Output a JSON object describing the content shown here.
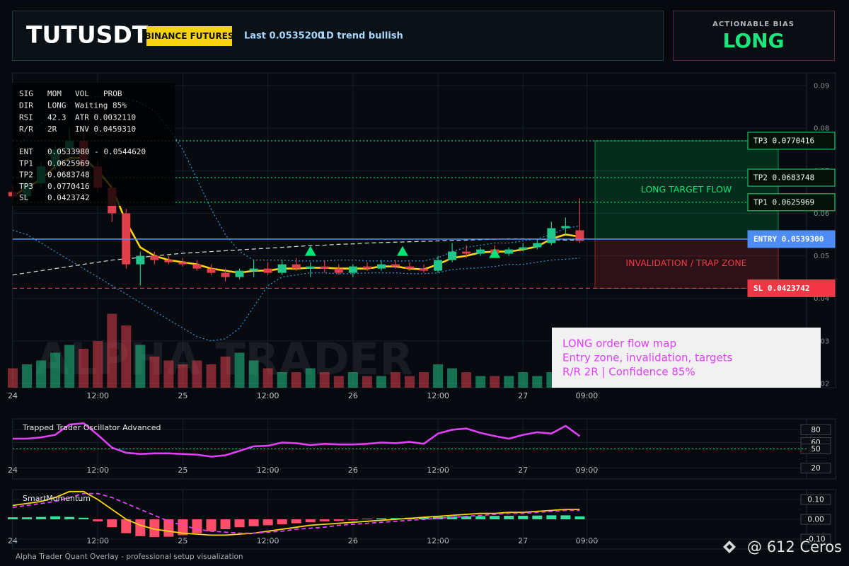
{
  "header": {
    "symbol": "TUTUSDT",
    "exchange": "BINANCE FUTURES",
    "last": "Last 0.0535200",
    "trend": "1D trend bullish"
  },
  "bias": {
    "label": "ACTIONABLE BIAS",
    "value": "LONG"
  },
  "info_panel": {
    "rows": [
      [
        "SIG",
        "MOM",
        "VOL",
        "PROB"
      ],
      [
        "DIR",
        "LONG",
        "Waiting 85%"
      ],
      [
        "RSI",
        "42.3",
        "ATR 0.0032110"
      ],
      [
        "R/R",
        "2R",
        "INV 0.0459310"
      ],
      [
        "ENT",
        "0.0533980 - 0.0544620"
      ],
      [
        "TP1",
        "0.0625969"
      ],
      [
        "TP2",
        "0.0683748"
      ],
      [
        "TP3",
        "0.0770416"
      ],
      [
        "SL",
        "0.0423742"
      ]
    ]
  },
  "note": {
    "lines": [
      "LONG order flow map",
      "Entry zone, invalidation, targets",
      "R/R 2R | Confidence 85%"
    ]
  },
  "background_text": "ALPHA TRADER",
  "footer": "Alpha Trader Quant Overlay - professional setup visualization",
  "watermark": "@ 612 Ceros",
  "chart_data": [
    {
      "type": "candlestick",
      "x": [
        0,
        2,
        4,
        6,
        8,
        10,
        12,
        14,
        16,
        18,
        20,
        22,
        24,
        26,
        28,
        30,
        32,
        34,
        36,
        38,
        40,
        42,
        44,
        46,
        48,
        50,
        52,
        54,
        56,
        58,
        60,
        62,
        64,
        66,
        68,
        70,
        72,
        74,
        76,
        78,
        80
      ],
      "open": [
        0.065,
        0.064,
        0.067,
        0.071,
        0.075,
        0.077,
        0.071,
        0.066,
        0.06,
        0.048,
        0.05,
        0.049,
        0.0485,
        0.048,
        0.047,
        0.046,
        0.045,
        0.0465,
        0.047,
        0.046,
        0.048,
        0.047,
        0.0475,
        0.047,
        0.046,
        0.0475,
        0.047,
        0.048,
        0.0475,
        0.047,
        0.0465,
        0.049,
        0.051,
        0.0505,
        0.0515,
        0.0505,
        0.0515,
        0.052,
        0.053,
        0.0565,
        0.056
      ],
      "high": [
        0.0665,
        0.068,
        0.072,
        0.076,
        0.08,
        0.079,
        0.072,
        0.067,
        0.061,
        0.051,
        0.051,
        0.05,
        0.0495,
        0.049,
        0.048,
        0.047,
        0.047,
        0.049,
        0.0485,
        0.049,
        0.0495,
        0.0485,
        0.049,
        0.048,
        0.048,
        0.0485,
        0.049,
        0.049,
        0.0485,
        0.048,
        0.05,
        0.053,
        0.0525,
        0.052,
        0.0525,
        0.052,
        0.053,
        0.054,
        0.058,
        0.059,
        0.0635
      ],
      "low": [
        0.063,
        0.0625,
        0.066,
        0.07,
        0.073,
        0.07,
        0.065,
        0.058,
        0.047,
        0.043,
        0.048,
        0.048,
        0.0475,
        0.0465,
        0.0455,
        0.044,
        0.0445,
        0.045,
        0.0455,
        0.0455,
        0.0465,
        0.045,
        0.046,
        0.0455,
        0.045,
        0.0465,
        0.0465,
        0.047,
        0.0465,
        0.046,
        0.046,
        0.0485,
        0.0495,
        0.05,
        0.05,
        0.05,
        0.051,
        0.0515,
        0.0525,
        0.055,
        0.053
      ],
      "close": [
        0.064,
        0.067,
        0.071,
        0.075,
        0.077,
        0.071,
        0.066,
        0.06,
        0.048,
        0.05,
        0.049,
        0.0485,
        0.048,
        0.047,
        0.046,
        0.045,
        0.0465,
        0.047,
        0.046,
        0.048,
        0.047,
        0.0475,
        0.047,
        0.046,
        0.0475,
        0.047,
        0.048,
        0.0475,
        0.047,
        0.0465,
        0.049,
        0.051,
        0.0505,
        0.0515,
        0.0505,
        0.0515,
        0.052,
        0.053,
        0.0565,
        0.057,
        0.0535
      ],
      "up_color": "#22c58b",
      "down_color": "#e0404d",
      "volume": [
        25,
        30,
        35,
        45,
        55,
        50,
        60,
        95,
        80,
        55,
        40,
        35,
        30,
        35,
        30,
        40,
        45,
        35,
        25,
        20,
        20,
        25,
        20,
        15,
        20,
        15,
        15,
        20,
        15,
        20,
        30,
        25,
        20,
        15,
        15,
        15,
        20,
        15,
        20,
        15,
        15
      ],
      "volume_lim": [
        0,
        100
      ],
      "overlays": [
        {
          "color": "#2b8fd0",
          "style": "dotted",
          "values": [
            0.075,
            0.078,
            0.081,
            0.084,
            0.086,
            0.087,
            0.0875,
            0.0875,
            0.087,
            0.086,
            0.084,
            0.08,
            0.075,
            0.068,
            0.061,
            0.055,
            0.051,
            0.049,
            0.049,
            0.049,
            0.0488,
            0.0488,
            0.0488,
            0.049,
            0.049,
            0.0488,
            0.0488,
            0.0488,
            0.0488,
            0.0488,
            0.0495,
            0.051,
            0.052,
            0.0525,
            0.053,
            0.053,
            0.0535,
            0.054,
            0.055,
            0.0565,
            0.057
          ]
        },
        {
          "color": "#2b8fd0",
          "style": "dotted",
          "values": [
            0.056,
            0.055,
            0.053,
            0.051,
            0.049,
            0.047,
            0.045,
            0.043,
            0.041,
            0.039,
            0.037,
            0.035,
            0.033,
            0.031,
            0.03,
            0.0305,
            0.033,
            0.038,
            0.043,
            0.045,
            0.0455,
            0.046,
            0.046,
            0.0458,
            0.0458,
            0.046,
            0.046,
            0.046,
            0.0458,
            0.0458,
            0.046,
            0.0468,
            0.047,
            0.0472,
            0.0475,
            0.048,
            0.048,
            0.0485,
            0.049,
            0.0492,
            0.0495
          ]
        },
        {
          "color": "#cfcfcf",
          "style": "dashed",
          "values": [
            0.0455,
            0.046,
            0.0465,
            0.047,
            0.0475,
            0.048,
            0.0485,
            0.049,
            0.0493,
            0.0496,
            0.05,
            0.0503,
            0.0506,
            0.0508,
            0.051,
            0.0512,
            0.0514,
            0.0516,
            0.0518,
            0.052,
            0.0522,
            0.0524,
            0.0525,
            0.0527,
            0.0528,
            0.053,
            0.0531,
            0.0532,
            0.0533,
            0.0534,
            0.0535,
            0.0536,
            0.0537,
            0.0538,
            0.0539,
            0.054,
            0.054,
            0.0539,
            0.0538,
            0.0537,
            0.0537
          ]
        },
        {
          "color": "#ffd60a",
          "style": "solid",
          "values": [
            0.064,
            0.066,
            0.068,
            0.071,
            0.073,
            0.073,
            0.07,
            0.066,
            0.058,
            0.052,
            0.05,
            0.049,
            0.0485,
            0.048,
            0.047,
            0.0465,
            0.046,
            0.0465,
            0.0465,
            0.047,
            0.047,
            0.0472,
            0.0472,
            0.047,
            0.047,
            0.047,
            0.0475,
            0.0475,
            0.047,
            0.0468,
            0.048,
            0.0495,
            0.05,
            0.0508,
            0.051,
            0.051,
            0.0515,
            0.0522,
            0.054,
            0.055,
            0.0545
          ]
        }
      ],
      "levels": [
        {
          "label": "TP3 0.0770416",
          "value": 0.0770416,
          "color": "#00e676",
          "line": "dotted",
          "box": "outline"
        },
        {
          "label": "TP2 0.0683748",
          "value": 0.0683748,
          "color": "#00e676",
          "line": "dotted",
          "box": "outline"
        },
        {
          "label": "TP1 0.0625969",
          "value": 0.0625969,
          "color": "#00e676",
          "line": "dotted",
          "box": "outline"
        },
        {
          "label": "ENTRY 0.0539300",
          "value": 0.05393,
          "color": "#4d8cf5",
          "line": "solid",
          "box": "filled"
        },
        {
          "label": "SL 0.0423742",
          "value": 0.0423742,
          "color": "#f23645",
          "line": "dashed",
          "box": "filled"
        }
      ],
      "zones": [
        {
          "label": "LONG TARGET FLOW",
          "from": 0.05393,
          "to": 0.0770416,
          "color": "#00e676"
        },
        {
          "label": "INVALIDATION / TRAP ZONE",
          "from": 0.0423742,
          "to": 0.05393,
          "color": "#f23645"
        }
      ],
      "signals": {
        "x": [
          42,
          55,
          68
        ],
        "values": [
          0.051,
          0.051,
          0.0505
        ],
        "color": "#00e676"
      },
      "xlim": [
        0,
        112
      ],
      "ylim": [
        0.019,
        0.093
      ],
      "yticks": [
        0.09,
        0.08,
        0.07,
        0.06,
        0.05,
        0.04,
        0.03,
        0.02
      ],
      "xticks": [
        {
          "value": 0,
          "label": "24"
        },
        {
          "value": 12,
          "label": "12:00"
        },
        {
          "value": 24,
          "label": "25"
        },
        {
          "value": 36,
          "label": "12:00"
        },
        {
          "value": 48,
          "label": "26"
        },
        {
          "value": 60,
          "label": "12:00"
        },
        {
          "value": 72,
          "label": "27"
        },
        {
          "value": 81,
          "label": "09:00"
        }
      ],
      "grid": true
    },
    {
      "type": "line",
      "title": "Trapped Trader Oscillator Advanced",
      "color": "#e040fb",
      "x": [
        0,
        2,
        4,
        6,
        8,
        10,
        12,
        14,
        16,
        18,
        20,
        22,
        24,
        26,
        28,
        30,
        32,
        34,
        36,
        38,
        40,
        42,
        44,
        46,
        48,
        50,
        52,
        54,
        56,
        58,
        60,
        62,
        64,
        66,
        68,
        70,
        72,
        74,
        76,
        78,
        80
      ],
      "values": [
        66,
        66,
        68,
        72,
        88,
        90,
        72,
        52,
        44,
        42,
        43,
        43,
        42,
        41,
        38,
        40,
        47,
        54,
        55,
        60,
        59,
        56,
        58,
        57,
        57,
        58,
        60,
        59,
        61,
        58,
        74,
        80,
        82,
        75,
        70,
        66,
        72,
        76,
        74,
        86,
        70
      ],
      "level": 50,
      "level_color": "#3ddc84",
      "xlim": [
        0,
        112
      ],
      "ylim": [
        3,
        97
      ],
      "yticks": [
        80,
        60,
        50,
        20
      ],
      "xticks": [
        {
          "value": 0,
          "label": "24"
        },
        {
          "value": 12,
          "label": "12:00"
        },
        {
          "value": 24,
          "label": "25"
        },
        {
          "value": 36,
          "label": "12:00"
        },
        {
          "value": 48,
          "label": "26"
        },
        {
          "value": 60,
          "label": "12:00"
        },
        {
          "value": 72,
          "label": "27"
        },
        {
          "value": 81,
          "label": "09:00"
        }
      ],
      "grid": true
    },
    {
      "type": "bar",
      "title": "SmartMomentum",
      "pos_color": "#2ee59d",
      "neg_color": "#ff4d6a",
      "x": [
        0,
        2,
        4,
        6,
        8,
        10,
        12,
        14,
        16,
        18,
        20,
        22,
        24,
        26,
        28,
        30,
        32,
        34,
        36,
        38,
        40,
        42,
        44,
        46,
        48,
        50,
        52,
        54,
        56,
        58,
        60,
        62,
        64,
        66,
        68,
        70,
        72,
        74,
        76,
        78,
        80
      ],
      "values": [
        0.01,
        0.01,
        0.012,
        0.015,
        0.012,
        0.008,
        -0.01,
        -0.04,
        -0.07,
        -0.085,
        -0.09,
        -0.088,
        -0.08,
        -0.07,
        -0.06,
        -0.05,
        -0.04,
        -0.035,
        -0.03,
        -0.025,
        -0.02,
        -0.015,
        -0.01,
        -0.008,
        -0.005,
        0.003,
        0.005,
        0.006,
        0.008,
        0.01,
        0.012,
        0.014,
        0.015,
        0.016,
        0.017,
        0.018,
        0.018,
        0.019,
        0.02,
        0.02,
        0.015
      ],
      "lines": [
        {
          "color": "#ffd60a",
          "style": "solid",
          "values": [
            0.07,
            0.08,
            0.09,
            0.11,
            0.14,
            0.14,
            0.1,
            0.05,
            0,
            -0.03,
            -0.05,
            -0.06,
            -0.07,
            -0.075,
            -0.08,
            -0.08,
            -0.075,
            -0.07,
            -0.06,
            -0.05,
            -0.04,
            -0.03,
            -0.025,
            -0.02,
            -0.015,
            -0.01,
            -0.005,
            0,
            0.005,
            0.01,
            0.015,
            0.02,
            0.025,
            0.03,
            0.03,
            0.035,
            0.035,
            0.04,
            0.045,
            0.05,
            0.05
          ]
        },
        {
          "color": "#e040fb",
          "style": "dashed",
          "values": [
            0.06,
            0.07,
            0.08,
            0.09,
            0.11,
            0.13,
            0.13,
            0.11,
            0.08,
            0.05,
            0.02,
            -0.01,
            -0.03,
            -0.05,
            -0.06,
            -0.065,
            -0.07,
            -0.07,
            -0.065,
            -0.06,
            -0.05,
            -0.045,
            -0.04,
            -0.03,
            -0.025,
            -0.02,
            -0.015,
            -0.01,
            -0.005,
            0,
            0.005,
            0.01,
            0.015,
            0.02,
            0.025,
            0.03,
            0.03,
            0.035,
            0.04,
            0.045,
            0.045
          ]
        }
      ],
      "xlim": [
        0,
        112
      ],
      "ylim": [
        -0.15,
        0.15
      ],
      "yticks": [
        {
          "value": 0.1,
          "label": "0.10"
        },
        {
          "value": 0,
          "label": "0.00"
        },
        {
          "value": -0.1,
          "label": "-0.10"
        }
      ],
      "xticks": [
        {
          "value": 0,
          "label": "24"
        },
        {
          "value": 12,
          "label": "12:00"
        },
        {
          "value": 24,
          "label": "25"
        },
        {
          "value": 36,
          "label": "12:00"
        },
        {
          "value": 48,
          "label": "26"
        },
        {
          "value": 60,
          "label": "12:00"
        },
        {
          "value": 72,
          "label": "27"
        },
        {
          "value": 81,
          "label": "09:00"
        }
      ],
      "grid": true
    }
  ]
}
